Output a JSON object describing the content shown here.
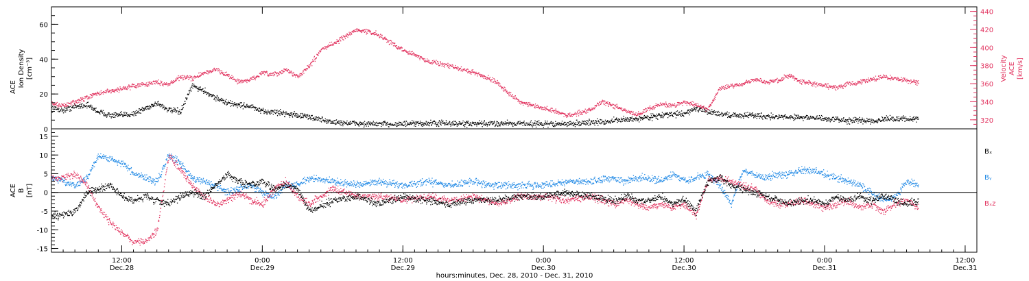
{
  "colors": {
    "black": "#000000",
    "red": "#e2335f",
    "blue": "#1e88e5"
  },
  "x_axis": {
    "label": "hours:minutes, Dec. 28, 2010 - Dec. 31, 2010",
    "ticks": [
      {
        "time": "12:00",
        "date": "Dec.28",
        "hour": 12
      },
      {
        "time": "0:00",
        "date": "Dec.29",
        "hour": 24
      },
      {
        "time": "12:00",
        "date": "Dec.29",
        "hour": 36
      },
      {
        "time": "0:00",
        "date": "Dec.30",
        "hour": 48
      },
      {
        "time": "12:00",
        "date": "Dec.30",
        "hour": 60
      },
      {
        "time": "0:00",
        "date": "Dec.31",
        "hour": 72
      },
      {
        "time": "12:00",
        "date": "Dec.31",
        "hour": 84
      }
    ]
  },
  "chart_data": [
    {
      "type": "scatter",
      "panel": "top",
      "xlim_hours": [
        6.0,
        85.0
      ],
      "left_axis": {
        "label_lines": [
          "ACE",
          "Ion Density",
          "[cm⁻³]"
        ],
        "ylim": [
          0,
          70
        ],
        "ticks": [
          0,
          20,
          40,
          60
        ]
      },
      "right_axis": {
        "label_lines": [
          "ACE",
          "Velocity",
          "[km/s]"
        ],
        "ylim": [
          310,
          445
        ],
        "ticks": [
          320,
          340,
          360,
          380,
          400,
          420,
          440
        ]
      },
      "series": [
        {
          "color": "black",
          "axis": "left",
          "anchors_hours": [
            6,
            7,
            8,
            9,
            10,
            11,
            12,
            13,
            14,
            15,
            16,
            17,
            18,
            19,
            20,
            21,
            22,
            23,
            24,
            25,
            26,
            27,
            28,
            30,
            33,
            36,
            39,
            42,
            45,
            48,
            50,
            52,
            53,
            54,
            56,
            57,
            58,
            60,
            61,
            62,
            64,
            66,
            68,
            70,
            72,
            74,
            76,
            78,
            80
          ],
          "values": [
            12,
            11,
            13,
            14,
            10,
            8,
            8,
            9,
            12,
            15,
            11,
            10,
            25,
            22,
            18,
            15,
            14,
            13,
            10,
            10,
            9,
            8,
            7,
            4,
            3,
            3,
            3.5,
            3,
            3.5,
            3,
            3,
            4,
            4,
            5,
            6,
            7,
            8,
            9,
            12,
            10,
            8,
            8,
            7,
            7,
            6,
            5,
            5,
            6,
            6
          ]
        },
        {
          "color": "red",
          "axis": "right",
          "anchors_hours": [
            6,
            7,
            8,
            9,
            10,
            11,
            12,
            13,
            14,
            15,
            16,
            17,
            18,
            19,
            20,
            21,
            22,
            23,
            24,
            25,
            26,
            27,
            28,
            29,
            30,
            31,
            32,
            33,
            34,
            35,
            36,
            37,
            38,
            39,
            40,
            41,
            42,
            43,
            44,
            45,
            46,
            47,
            48,
            49,
            50,
            51,
            52,
            53,
            54,
            55,
            56,
            57,
            58,
            59,
            60,
            61,
            62,
            63,
            64,
            65,
            66,
            67,
            68,
            69,
            70,
            71,
            72,
            73,
            74,
            75,
            76,
            77,
            78,
            79,
            80
          ],
          "values": [
            338,
            336,
            340,
            345,
            350,
            352,
            355,
            358,
            360,
            362,
            360,
            368,
            366,
            372,
            376,
            370,
            362,
            365,
            372,
            370,
            376,
            368,
            380,
            398,
            405,
            412,
            420,
            418,
            414,
            405,
            398,
            392,
            386,
            383,
            380,
            376,
            373,
            368,
            362,
            350,
            340,
            336,
            333,
            330,
            325,
            328,
            332,
            340,
            336,
            330,
            326,
            333,
            338,
            336,
            340,
            337,
            332,
            355,
            358,
            360,
            365,
            362,
            364,
            370,
            362,
            360,
            358,
            356,
            360,
            362,
            365,
            368,
            366,
            364,
            362
          ]
        }
      ]
    },
    {
      "type": "scatter",
      "panel": "bottom",
      "xlim_hours": [
        6.0,
        85.0
      ],
      "left_axis": {
        "label_lines": [
          "ACE",
          "B",
          "[nT]"
        ],
        "ylim": [
          -16,
          17
        ],
        "ticks": [
          -15,
          -10,
          -5,
          0,
          5,
          10,
          15
        ]
      },
      "zero_line": true,
      "series": [
        {
          "name": "Bₓ",
          "color": "black",
          "anchors_hours": [
            6,
            7,
            8,
            9,
            10,
            11,
            12,
            13,
            14,
            15,
            16,
            17,
            18,
            19,
            20,
            21,
            22,
            23,
            24,
            25,
            26,
            27,
            28,
            30,
            32,
            34,
            36,
            38,
            40,
            42,
            44,
            46,
            48,
            50,
            52,
            54,
            55,
            56,
            57,
            58,
            59,
            60,
            61,
            62,
            63,
            64,
            65,
            66,
            67,
            68,
            69,
            70,
            71,
            72,
            73,
            74,
            75,
            76,
            77,
            78,
            79,
            80
          ],
          "values": [
            -6,
            -6,
            -5,
            0,
            1,
            2,
            -1,
            -2,
            -1,
            -2,
            -3,
            -1,
            0,
            -1,
            2,
            5,
            3,
            2,
            3,
            1,
            2,
            1,
            -5,
            -2,
            -1,
            -3,
            -1,
            -2,
            -3,
            -2,
            -2,
            -1,
            -1,
            0,
            -1,
            -2,
            -1,
            -2,
            -2,
            -1,
            -3,
            -2,
            -5,
            3,
            4,
            2,
            1,
            0,
            -1,
            -2,
            -3,
            -2,
            -2,
            -3,
            -1,
            -2,
            -1,
            -2,
            -1,
            -2,
            -3,
            -2
          ]
        },
        {
          "name": "Bᵧ",
          "color": "blue",
          "anchors_hours": [
            6,
            7,
            8,
            9,
            10,
            11,
            12,
            13,
            14,
            15,
            16,
            17,
            18,
            19,
            20,
            21,
            22,
            23,
            24,
            25,
            26,
            27,
            28,
            30,
            32,
            34,
            36,
            38,
            40,
            42,
            44,
            46,
            48,
            50,
            52,
            54,
            55,
            56,
            57,
            58,
            59,
            60,
            61,
            62,
            63,
            64,
            65,
            66,
            67,
            68,
            69,
            70,
            71,
            72,
            73,
            74,
            75,
            76,
            77,
            78,
            79,
            80
          ],
          "values": [
            4,
            3,
            2,
            4,
            10,
            9,
            8,
            5,
            4,
            3,
            10,
            8,
            4,
            3,
            2,
            0,
            1,
            2,
            0,
            -1,
            2,
            2,
            4,
            3,
            2,
            3,
            2,
            3,
            2,
            3,
            2,
            2,
            2,
            3,
            3,
            4,
            3,
            4,
            4,
            3,
            5,
            3,
            4,
            5,
            2,
            -3,
            6,
            5,
            4,
            5,
            5,
            6,
            6,
            5,
            4,
            3,
            2,
            0,
            -2,
            -1,
            3,
            2
          ]
        },
        {
          "name": "Bₓz",
          "color": "red",
          "anchors_hours": [
            6,
            7,
            8,
            9,
            10,
            11,
            12,
            13,
            14,
            15,
            16,
            17,
            18,
            19,
            20,
            21,
            22,
            23,
            24,
            25,
            26,
            27,
            28,
            30,
            32,
            34,
            36,
            38,
            40,
            42,
            44,
            46,
            48,
            50,
            52,
            54,
            55,
            56,
            57,
            58,
            59,
            60,
            61,
            62,
            63,
            64,
            65,
            66,
            67,
            68,
            69,
            70,
            71,
            72,
            73,
            74,
            75,
            76,
            77,
            78,
            79,
            80
          ],
          "values": [
            4,
            4,
            5,
            2,
            -4,
            -8,
            -11,
            -13,
            -13,
            -10,
            10,
            6,
            2,
            -1,
            -3,
            -2,
            0,
            -2,
            -3,
            1,
            3,
            -1,
            -3,
            1,
            -1,
            -1,
            -2,
            -1,
            -2,
            -1,
            -3,
            -1,
            -1,
            -2,
            -1,
            -3,
            -2,
            -3,
            -4,
            -3,
            -4,
            -3,
            -6,
            3,
            4,
            3,
            2,
            1,
            -2,
            -3,
            -3,
            -2,
            -3,
            -4,
            -3,
            -2,
            -4,
            -3,
            -5,
            -3,
            -2,
            -4
          ]
        }
      ],
      "legend": [
        "Bₓ",
        "Bᵧ",
        "Bₓz"
      ]
    }
  ]
}
